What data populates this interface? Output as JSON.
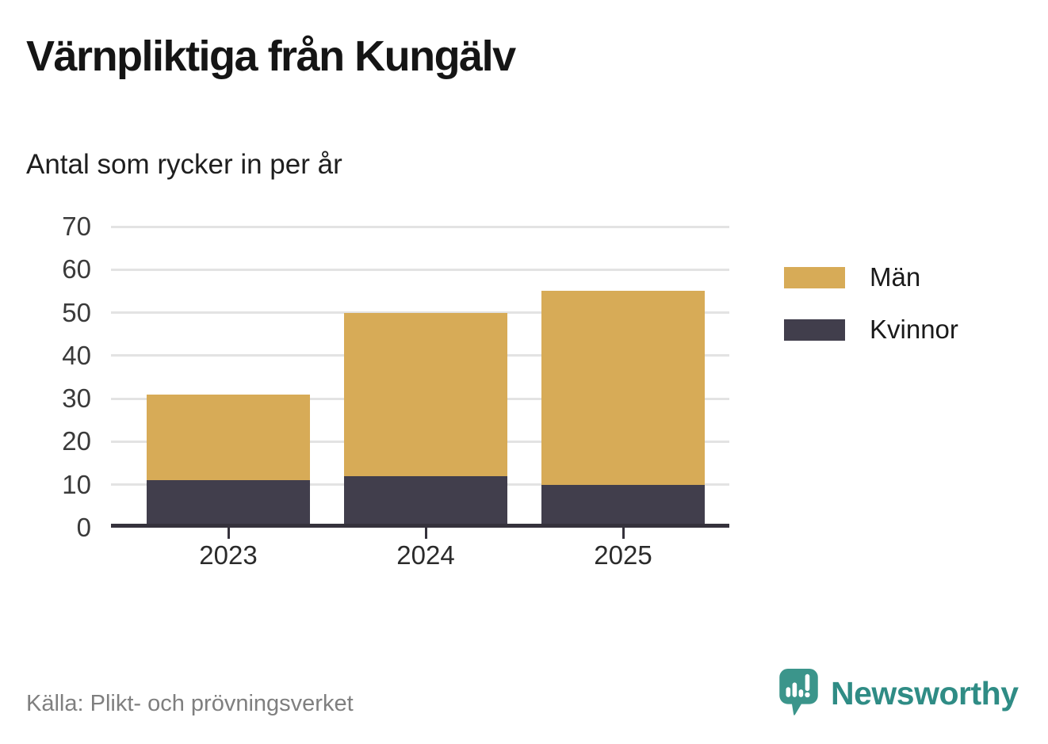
{
  "header": {
    "title": "Värnpliktiga från Kungälv",
    "subtitle": "Antal som rycker in per år"
  },
  "chart_data": {
    "type": "bar",
    "stacked": true,
    "title": "Värnpliktiga från Kungälv",
    "subtitle": "Antal som rycker in per år",
    "categories": [
      "2023",
      "2024",
      "2025"
    ],
    "series": [
      {
        "name": "Kvinnor",
        "values": [
          11,
          12,
          10
        ],
        "color": "#413e4c"
      },
      {
        "name": "Män",
        "values": [
          20,
          38,
          45
        ],
        "color": "#d7ab57"
      }
    ],
    "stack_totals": [
      31,
      50,
      55
    ],
    "xlabel": "",
    "ylabel": "",
    "ylim": [
      0,
      70
    ],
    "yticks": [
      0,
      10,
      20,
      30,
      40,
      50,
      60,
      70
    ],
    "grid": "horizontal",
    "legend_position": "right",
    "legend_order": [
      "Män",
      "Kvinnor"
    ]
  },
  "footer": {
    "source": "Källa: Plikt- och prövningsverket",
    "brand": "Newsworthy"
  },
  "colors": {
    "men_bar": "#d7ab57",
    "women_bar": "#413e4c",
    "axis_line": "#35323c",
    "gridline": "#e3e3e3",
    "tick_label": "#3a3a3a",
    "title_text": "#151515",
    "source_text": "#7f7f7f",
    "brand_icon_teal": "#3b958b",
    "brand_text_teal": "#2f8c85"
  }
}
